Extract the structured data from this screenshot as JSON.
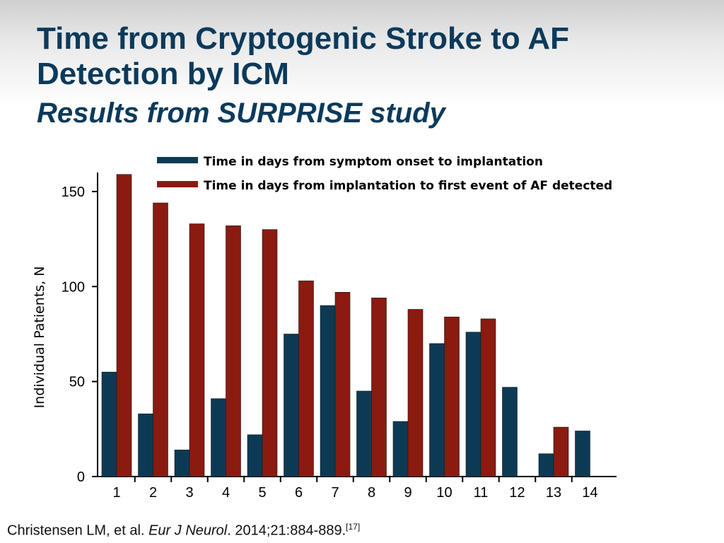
{
  "slide": {
    "title_line1": "Time from Cryptogenic Stroke to AF",
    "title_line2": "Detection by ICM",
    "subtitle": "Results from SURPRISE study"
  },
  "citation": {
    "authors": "Christensen LM, et al. ",
    "journal": "Eur J Neurol",
    "details": ". 2014;21:884-889.",
    "ref": "[17]"
  },
  "colors": {
    "title": "#0c3a5b",
    "series_onset": "#0c3a55",
    "series_af": "#8b1a10",
    "axis": "#000000"
  },
  "chart_data": {
    "type": "bar",
    "title": "",
    "xlabel": "",
    "ylabel": "Individual Patients, N",
    "ylim": [
      0,
      160
    ],
    "yticks": [
      0,
      50,
      100,
      150
    ],
    "grid": false,
    "legend_position": "top",
    "categories": [
      "1",
      "2",
      "3",
      "4",
      "5",
      "6",
      "7",
      "8",
      "9",
      "10",
      "11",
      "12",
      "13",
      "14"
    ],
    "series": [
      {
        "name": "Time in days from symptom onset to implantation",
        "color": "#0c3a55",
        "values": [
          55,
          33,
          14,
          41,
          22,
          75,
          90,
          45,
          29,
          70,
          76,
          47,
          12,
          24
        ]
      },
      {
        "name": "Time in days from implantation to first event of AF detected",
        "color": "#8b1a10",
        "values": [
          159,
          144,
          133,
          132,
          130,
          103,
          97,
          94,
          88,
          84,
          83,
          null,
          26,
          null
        ]
      }
    ]
  }
}
